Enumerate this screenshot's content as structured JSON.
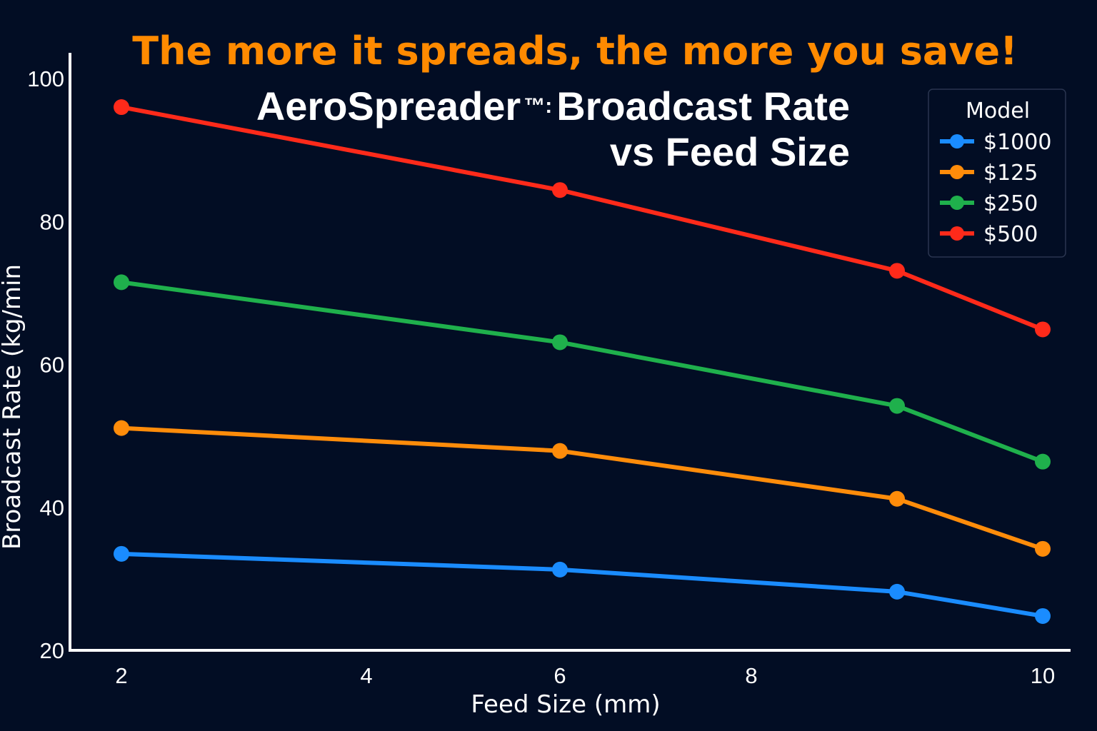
{
  "chart_data": {
    "type": "line",
    "subtitle": "The more it spreads, the more you save!",
    "title_line1": "AeroSpreader",
    "title_tm": "™:",
    "title_line1_rest": "Broadcast Rate",
    "title_line2": "vs Feed Size",
    "xlabel": "Feed Size (mm)",
    "ylabel": "Broadcast Rate (kg/min",
    "xticks": [
      "2",
      "4",
      "6",
      "8",
      "10"
    ],
    "yticks": [
      "20",
      "40",
      "60",
      "80",
      "100"
    ],
    "ylim": [
      20,
      100
    ],
    "xlim": [
      2,
      10
    ],
    "grid": false,
    "legend_title": "Model",
    "legend_position": "top-right",
    "x": [
      2,
      6,
      9,
      10
    ],
    "series": [
      {
        "name": "$1000",
        "color": "#1a8cff",
        "values": [
          33.5,
          31.3,
          28.2,
          24.8
        ]
      },
      {
        "name": "$125",
        "color": "#ff8c0a",
        "values": [
          51.1,
          47.9,
          41.2,
          34.2
        ]
      },
      {
        "name": "$250",
        "color": "#1fb04c",
        "values": [
          71.5,
          63.1,
          54.2,
          46.4
        ]
      },
      {
        "name": "$500",
        "color": "#ff2a1a",
        "values": [
          96.0,
          84.4,
          73.1,
          64.9
        ]
      }
    ]
  }
}
